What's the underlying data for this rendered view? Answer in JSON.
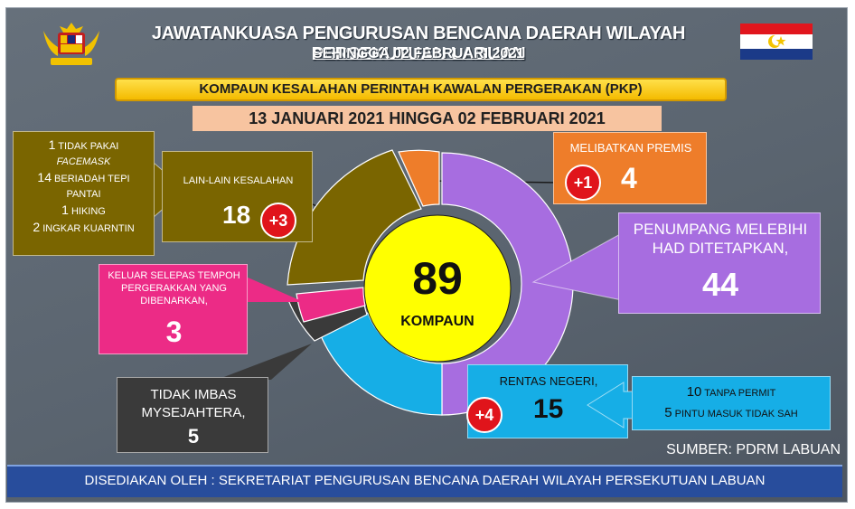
{
  "header": {
    "title": "JAWATANKUASA PENGURUSAN BENCANA DAERAH WILAYAH PERSEKUTUAN LABUAN",
    "subtitle": "SEHINGGA 02 FEBRUARI 2021"
  },
  "banner": {
    "title": "KOMPAUN KESALAHAN PERINTAH KAWALAN PERGERAKAN (PKP)",
    "date_range": "13 JANUARI 2021 HINGGA 02 FEBRUARI 2021"
  },
  "center": {
    "total": "89",
    "label": "KOMPAUN"
  },
  "categories": {
    "lain_lain": {
      "label": "LAIN-LAIN KESALAHAN",
      "value": "18",
      "change": "+3",
      "breakdown": [
        {
          "count": "1",
          "text": "TIDAK PAKAI",
          "extra": "FACEMASK"
        },
        {
          "count": "14",
          "text": "BERIADAH TEPI",
          "extra": "PANTAI"
        },
        {
          "count": "1",
          "text": "HIKING"
        },
        {
          "count": "2",
          "text": "INGKAR KUARNTIN"
        }
      ]
    },
    "premis": {
      "label": "MELIBATKAN PREMIS",
      "value": "4",
      "change": "+1"
    },
    "penumpang": {
      "label_line1": "PENUMPANG MELEBIHI",
      "label_line2": "HAD DITETAPKAN,",
      "value": "44"
    },
    "keluar": {
      "label_line1": "KELUAR SELEPAS TEMPOH",
      "label_line2": "PERGERAKKAN YANG",
      "label_line3": "DIBENARKAN,",
      "value": "3"
    },
    "tidak_imbas": {
      "label_line1": "TIDAK IMBAS",
      "label_line2": "MYSEJAHTERA,",
      "value": "5"
    },
    "rentas": {
      "label": "RENTAS NEGERI,",
      "value": "15",
      "change": "+4",
      "breakdown": [
        {
          "count": "10",
          "text": "TANPA PERMIT"
        },
        {
          "count": "5",
          "text": "PINTU MASUK TIDAK SAH"
        }
      ]
    }
  },
  "source": "SUMBER: PDRM LABUAN",
  "footer": "DISEDIAKAN OLEH : SEKRETARIAT PENGURUSAN BENCANA DAERAH WILAYAH PERSEKUTUAN LABUAN",
  "colors": {
    "penumpang": "#a76de0",
    "rentas": "#16aee6",
    "tidak_imbas": "#3a3a3a",
    "keluar": "#ec2b86",
    "lain_lain": "#7a6500",
    "premis": "#ee7d2a",
    "center": "#ffff00",
    "badge": "#e0141b"
  },
  "icons": [
    "malaysia-coat-of-arms-icon",
    "labuan-flag-icon"
  ]
}
